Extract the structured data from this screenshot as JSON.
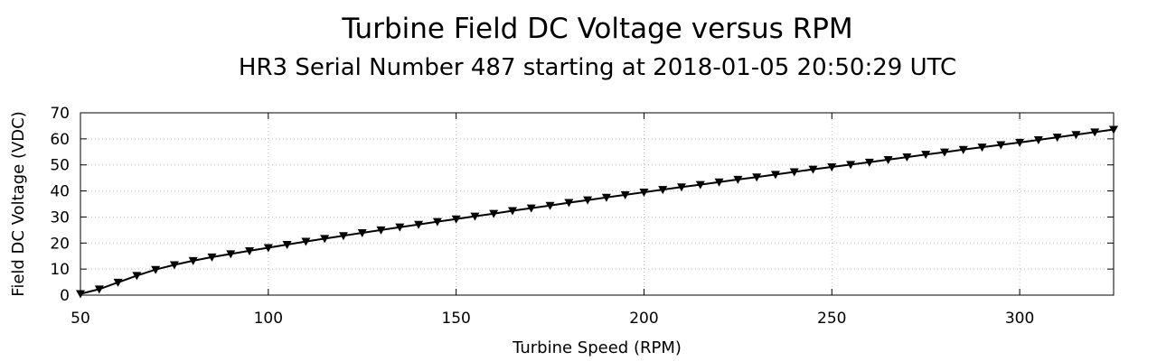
{
  "chart_data": {
    "type": "line",
    "title": "Turbine Field DC Voltage versus RPM",
    "subtitle": "HR3 Serial Number 487 starting at 2018-01-05 20:50:29 UTC",
    "xlabel": "Turbine Speed (RPM)",
    "ylabel": "Field DC Voltage (VDC)",
    "xlim": [
      50,
      325
    ],
    "ylim": [
      0,
      70
    ],
    "xticks": [
      50,
      100,
      150,
      200,
      250,
      300
    ],
    "yticks": [
      0,
      10,
      20,
      30,
      40,
      50,
      60,
      70
    ],
    "grid": true,
    "legend": "none",
    "marker": "down-triangle",
    "line_color": "#000000",
    "series": [
      {
        "x": [
          50,
          55,
          60,
          65,
          70,
          75,
          80,
          85,
          90,
          95,
          100,
          105,
          110,
          115,
          120,
          125,
          130,
          135,
          140,
          145,
          150,
          155,
          160,
          165,
          170,
          175,
          180,
          185,
          190,
          195,
          200,
          205,
          210,
          215,
          220,
          225,
          230,
          235,
          240,
          245,
          250,
          255,
          260,
          265,
          270,
          275,
          280,
          285,
          290,
          295,
          300,
          305,
          310,
          315,
          320,
          325
        ],
        "y": [
          0.5,
          2.3,
          4.9,
          7.5,
          9.8,
          11.6,
          13.2,
          14.6,
          15.8,
          17.0,
          18.2,
          19.4,
          20.6,
          21.7,
          22.8,
          23.9,
          25.0,
          26.1,
          27.1,
          28.2,
          29.2,
          30.3,
          31.3,
          32.4,
          33.4,
          34.4,
          35.5,
          36.5,
          37.5,
          38.5,
          39.5,
          40.5,
          41.5,
          42.4,
          43.4,
          44.4,
          45.3,
          46.3,
          47.3,
          48.3,
          49.2,
          50.1,
          51.0,
          52.0,
          53.0,
          54.0,
          54.9,
          55.9,
          56.8,
          57.7,
          58.6,
          59.6,
          60.6,
          61.6,
          62.6,
          63.6
        ]
      }
    ]
  }
}
